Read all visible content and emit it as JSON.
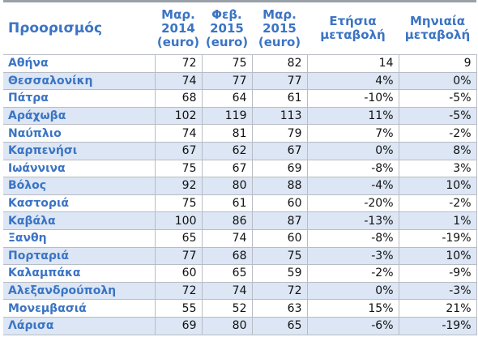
{
  "table": {
    "header": [
      [
        "Προορισμός"
      ],
      [
        "Μαρ.",
        "2014",
        "(euro)"
      ],
      [
        "Φεβ.",
        "2015",
        "(euro)"
      ],
      [
        "Μαρ.",
        "2015",
        "(euro)"
      ],
      [
        "Ετήσια",
        "μεταβολή"
      ],
      [
        "Μηνιαία",
        "μεταβολή"
      ]
    ],
    "rows": [
      [
        "Αθήνα",
        "72",
        "75",
        "82",
        "14",
        "9"
      ],
      [
        "Θεσσαλονίκη",
        "74",
        "77",
        "77",
        "4%",
        "0%"
      ],
      [
        "Πάτρα",
        "68",
        "64",
        "61",
        "-10%",
        "-5%"
      ],
      [
        "Αράχωβα",
        "102",
        "119",
        "113",
        "11%",
        "-5%"
      ],
      [
        "Ναύπλιο",
        "74",
        "81",
        "79",
        "7%",
        "-2%"
      ],
      [
        "Καρπενήσι",
        "67",
        "62",
        "67",
        "0%",
        "8%"
      ],
      [
        "Ιωάννινα",
        "75",
        "67",
        "69",
        "-8%",
        "3%"
      ],
      [
        "Βόλος",
        "92",
        "80",
        "88",
        "-4%",
        "10%"
      ],
      [
        "Καστοριά",
        "75",
        "61",
        "60",
        "-20%",
        "-2%"
      ],
      [
        "Καβάλα",
        "100",
        "86",
        "87",
        "-13%",
        "1%"
      ],
      [
        "Ξανθη",
        "65",
        "74",
        "60",
        "-8%",
        "-19%"
      ],
      [
        "Πορταριά",
        "77",
        "68",
        "75",
        "-3%",
        "10%"
      ],
      [
        "Καλαμπάκα",
        "60",
        "65",
        "59",
        "-2%",
        "-9%"
      ],
      [
        "Αλεξανδρούπολη",
        "72",
        "74",
        "72",
        "0%",
        "-3%"
      ],
      [
        "Μονεμβασιά",
        "55",
        "52",
        "63",
        "15%",
        "21%"
      ],
      [
        "Λάρισα",
        "69",
        "80",
        "65",
        "-6%",
        "-19%"
      ]
    ]
  }
}
